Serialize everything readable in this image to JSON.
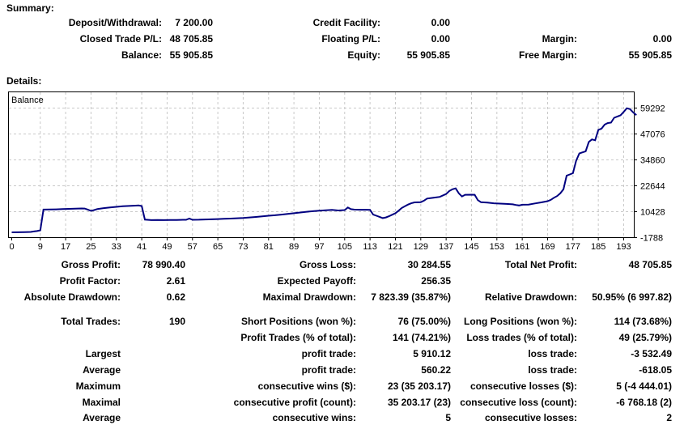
{
  "summary": {
    "title": "Summary:",
    "rows": [
      {
        "c1l": "Deposit/Withdrawal:",
        "c1v": "7 200.00",
        "c2l": "Credit Facility:",
        "c2v": "0.00",
        "c3l": "",
        "c3v": ""
      },
      {
        "c1l": "Closed Trade P/L:",
        "c1v": "48 705.85",
        "c2l": "Floating P/L:",
        "c2v": "0.00",
        "c3l": "Margin:",
        "c3v": "0.00"
      },
      {
        "c1l": "Balance:",
        "c1v": "55 905.85",
        "c2l": "Equity:",
        "c2v": "55 905.85",
        "c3l": "Free Margin:",
        "c3v": "55 905.85"
      }
    ]
  },
  "details_title": "Details:",
  "stats": {
    "rows": [
      {
        "c1l": "Gross Profit:",
        "c1v": "78 990.40",
        "c2l": "Gross Loss:",
        "c2v": "30 284.55",
        "c3l": "Total Net Profit:",
        "c3v": "48 705.85"
      },
      {
        "c1l": "Profit Factor:",
        "c1v": "2.61",
        "c2l": "Expected Payoff:",
        "c2v": "256.35",
        "c3l": "",
        "c3v": ""
      },
      {
        "c1l": "Absolute Drawdown:",
        "c1v": "0.62",
        "c2l": "Maximal Drawdown:",
        "c2v": "7 823.39 (35.87%)",
        "c3l": "Relative Drawdown:",
        "c3v": "50.95% (6 997.82)"
      },
      {
        "c1l": "Total Trades:",
        "c1v": "190",
        "c2l": "Short Positions (won %):",
        "c2v": "76 (75.00%)",
        "c3l": "Long Positions (won %):",
        "c3v": "114 (73.68%)"
      },
      {
        "c1l": "",
        "c1v": "",
        "c2l": "Profit Trades (% of total):",
        "c2v": "141 (74.21%)",
        "c3l": "Loss trades (% of total):",
        "c3v": "49 (25.79%)"
      },
      {
        "c1l": "Largest",
        "c1v": "",
        "c2l": "profit trade:",
        "c2v": "5 910.12",
        "c3l": "loss trade:",
        "c3v": "-3 532.49"
      },
      {
        "c1l": "Average",
        "c1v": "",
        "c2l": "profit trade:",
        "c2v": "560.22",
        "c3l": "loss trade:",
        "c3v": "-618.05"
      },
      {
        "c1l": "Maximum",
        "c1v": "",
        "c2l": "consecutive wins ($):",
        "c2v": "23 (35 203.17)",
        "c3l": "consecutive losses ($):",
        "c3v": "5 (-4 444.01)"
      },
      {
        "c1l": "Maximal",
        "c1v": "",
        "c2l": "consecutive profit (count):",
        "c2v": "35 203.17 (23)",
        "c3l": "consecutive loss (count):",
        "c3v": "-6 768.18 (2)"
      },
      {
        "c1l": "Average",
        "c1v": "",
        "c2l": "consecutive wins:",
        "c2v": "5",
        "c3l": "consecutive losses:",
        "c3v": "2"
      }
    ]
  },
  "chart_data": {
    "type": "line",
    "series_label": "Balance",
    "line_color": "#000080",
    "grid_color": "#c9c9c9",
    "xlabel": "",
    "ylabel": "",
    "legend_position": "top-left-inside",
    "grid": "dashed",
    "x_ticks": [
      0,
      9,
      17,
      25,
      33,
      41,
      49,
      57,
      65,
      73,
      81,
      89,
      97,
      105,
      113,
      121,
      129,
      137,
      145,
      153,
      161,
      169,
      177,
      185,
      193
    ],
    "y_ticks": [
      -1788,
      10428,
      22644,
      34860,
      47076,
      59292
    ],
    "x_range": [
      0,
      197
    ],
    "y_view": [
      -1788,
      66912
    ],
    "points": [
      [
        0,
        700
      ],
      [
        2,
        750
      ],
      [
        4,
        820
      ],
      [
        6,
        900
      ],
      [
        7,
        1100
      ],
      [
        8,
        1300
      ],
      [
        9,
        1650
      ],
      [
        10,
        11400
      ],
      [
        12,
        11450
      ],
      [
        14,
        11550
      ],
      [
        16,
        11650
      ],
      [
        18,
        11750
      ],
      [
        20,
        11850
      ],
      [
        22,
        11950
      ],
      [
        23,
        11900
      ],
      [
        24,
        11400
      ],
      [
        25,
        10800
      ],
      [
        26,
        11200
      ],
      [
        27,
        11700
      ],
      [
        29,
        12100
      ],
      [
        31,
        12400
      ],
      [
        33,
        12700
      ],
      [
        35,
        13000
      ],
      [
        37,
        13150
      ],
      [
        39,
        13300
      ],
      [
        40,
        13360
      ],
      [
        41,
        13100
      ],
      [
        42,
        6700
      ],
      [
        44,
        6450
      ],
      [
        46,
        6500
      ],
      [
        48,
        6470
      ],
      [
        50,
        6520
      ],
      [
        52,
        6550
      ],
      [
        54,
        6600
      ],
      [
        55,
        6620
      ],
      [
        56,
        7200
      ],
      [
        57,
        6600
      ],
      [
        59,
        6650
      ],
      [
        61,
        6750
      ],
      [
        63,
        6850
      ],
      [
        65,
        6950
      ],
      [
        67,
        7050
      ],
      [
        69,
        7200
      ],
      [
        71,
        7350
      ],
      [
        73,
        7500
      ],
      [
        75,
        7700
      ],
      [
        77,
        7950
      ],
      [
        79,
        8200
      ],
      [
        81,
        8500
      ],
      [
        83,
        8750
      ],
      [
        85,
        9050
      ],
      [
        87,
        9400
      ],
      [
        89,
        9700
      ],
      [
        91,
        10050
      ],
      [
        93,
        10400
      ],
      [
        95,
        10650
      ],
      [
        97,
        10900
      ],
      [
        99,
        11100
      ],
      [
        101,
        11300
      ],
      [
        102,
        11150
      ],
      [
        103,
        11000
      ],
      [
        104,
        11100
      ],
      [
        105,
        11200
      ],
      [
        106,
        12400
      ],
      [
        107,
        11600
      ],
      [
        108,
        11400
      ],
      [
        110,
        11350
      ],
      [
        112,
        11350
      ],
      [
        113,
        11300
      ],
      [
        114,
        9100
      ],
      [
        115,
        8500
      ],
      [
        116,
        8000
      ],
      [
        117,
        7400
      ],
      [
        118,
        7700
      ],
      [
        119,
        8300
      ],
      [
        120,
        9000
      ],
      [
        121,
        9700
      ],
      [
        122,
        10900
      ],
      [
        123,
        12200
      ],
      [
        124,
        13000
      ],
      [
        125,
        13800
      ],
      [
        126,
        14400
      ],
      [
        127,
        14800
      ],
      [
        129,
        14900
      ],
      [
        130,
        15600
      ],
      [
        131,
        16600
      ],
      [
        133,
        17000
      ],
      [
        135,
        17400
      ],
      [
        137,
        18800
      ],
      [
        138,
        20200
      ],
      [
        139,
        21000
      ],
      [
        140,
        21400
      ],
      [
        141,
        19100
      ],
      [
        142,
        17600
      ],
      [
        143,
        18400
      ],
      [
        145,
        18450
      ],
      [
        146,
        18400
      ],
      [
        147,
        15900
      ],
      [
        148,
        14900
      ],
      [
        150,
        14700
      ],
      [
        152,
        14400
      ],
      [
        154,
        14250
      ],
      [
        156,
        14100
      ],
      [
        158,
        13900
      ],
      [
        159,
        13600
      ],
      [
        160,
        13350
      ],
      [
        161,
        13700
      ],
      [
        163,
        13800
      ],
      [
        165,
        14300
      ],
      [
        167,
        14800
      ],
      [
        169,
        15400
      ],
      [
        170,
        16000
      ],
      [
        171,
        17000
      ],
      [
        172,
        17800
      ],
      [
        173,
        19100
      ],
      [
        174,
        21000
      ],
      [
        175,
        27400
      ],
      [
        176,
        28000
      ],
      [
        177,
        28600
      ],
      [
        178,
        34400
      ],
      [
        179,
        37900
      ],
      [
        180,
        38400
      ],
      [
        181,
        38900
      ],
      [
        182,
        43300
      ],
      [
        183,
        44500
      ],
      [
        184,
        44100
      ],
      [
        185,
        49000
      ],
      [
        186,
        49600
      ],
      [
        187,
        51500
      ],
      [
        188,
        52200
      ],
      [
        189,
        52400
      ],
      [
        190,
        54700
      ],
      [
        191,
        55300
      ],
      [
        192,
        55900
      ],
      [
        193,
        57500
      ],
      [
        194,
        59200
      ],
      [
        195,
        58800
      ],
      [
        196,
        57200
      ],
      [
        197,
        55906
      ]
    ]
  }
}
